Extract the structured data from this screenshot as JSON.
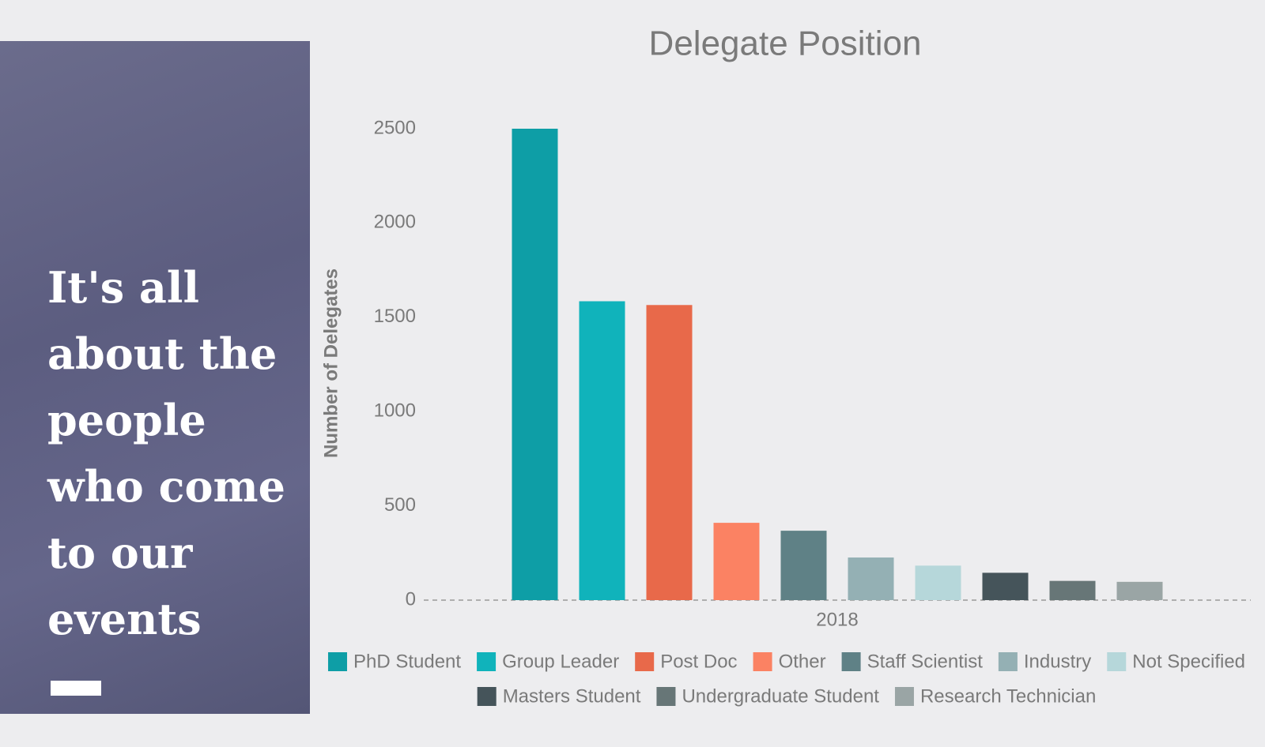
{
  "panel": {
    "headline": "It's all about the people who come to our events"
  },
  "chart_data": {
    "type": "bar",
    "title": "Delegate Position",
    "y_label": "Number of Delegates",
    "categories": [
      "2018"
    ],
    "series": [
      {
        "name": "PhD Student",
        "color": "#0e9ea6",
        "values": [
          2500
        ]
      },
      {
        "name": "Group Leader",
        "color": "#10b3bb",
        "values": [
          1585
        ]
      },
      {
        "name": "Post Doc",
        "color": "#e8694a",
        "values": [
          1565
        ]
      },
      {
        "name": "Other",
        "color": "#fb8263",
        "values": [
          410
        ]
      },
      {
        "name": "Staff Scientist",
        "color": "#5f8186",
        "values": [
          368
        ]
      },
      {
        "name": "Industry",
        "color": "#94b0b4",
        "values": [
          226
        ]
      },
      {
        "name": "Not Specified",
        "color": "#b6d7da",
        "values": [
          183
        ]
      },
      {
        "name": "Masters Student",
        "color": "#45545a",
        "values": [
          145
        ]
      },
      {
        "name": "Undergraduate Student",
        "color": "#677677",
        "values": [
          102
        ]
      },
      {
        "name": "Research Technician",
        "color": "#9aa5a5",
        "values": [
          97
        ]
      }
    ],
    "ylim": [
      0,
      2500
    ],
    "yticks": [
      0,
      500,
      1000,
      1500,
      2000,
      2500
    ],
    "grid": false,
    "legend": "bottom"
  }
}
